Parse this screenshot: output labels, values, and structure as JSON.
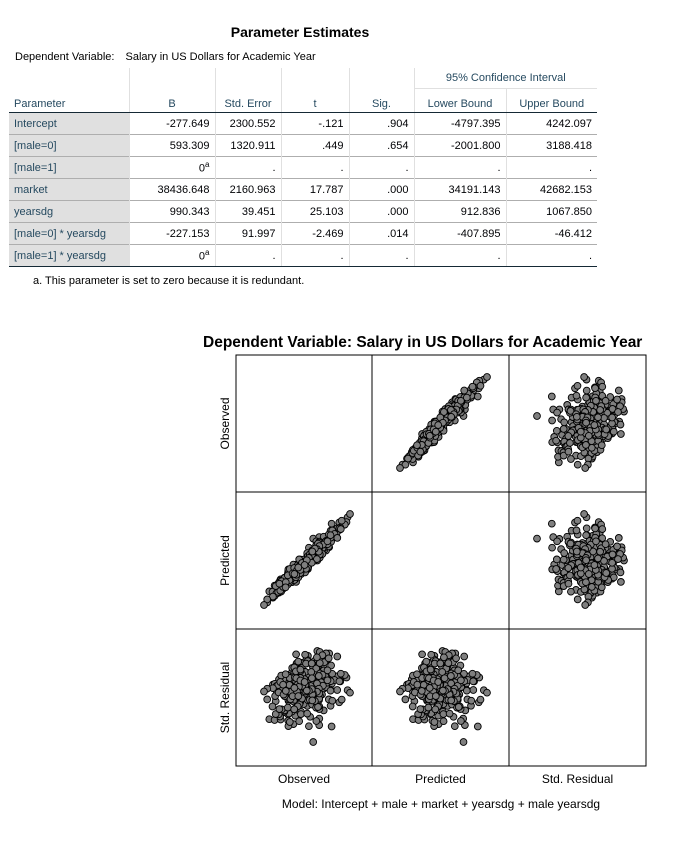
{
  "table": {
    "title": "Parameter Estimates",
    "dependent_label": "Dependent Variable:",
    "dependent_value": "Salary in US Dollars for Academic Year",
    "ci_header": "95% Confidence Interval",
    "columns": [
      "Parameter",
      "B",
      "Std. Error",
      "t",
      "Sig.",
      "Lower Bound",
      "Upper Bound"
    ],
    "rows": [
      {
        "param": "Intercept",
        "b": "-277.649",
        "se": "2300.552",
        "t": "-.121",
        "sig": ".904",
        "lo": "-4797.395",
        "hi": "4242.097"
      },
      {
        "param": "[male=0]",
        "b": "593.309",
        "se": "1320.911",
        "t": ".449",
        "sig": ".654",
        "lo": "-2001.800",
        "hi": "3188.418"
      },
      {
        "param": "[male=1]",
        "b": "0",
        "b_sup": "a",
        "se": ".",
        "t": ".",
        "sig": ".",
        "lo": ".",
        "hi": "."
      },
      {
        "param": "market",
        "b": "38436.648",
        "se": "2160.963",
        "t": "17.787",
        "sig": ".000",
        "lo": "34191.143",
        "hi": "42682.153"
      },
      {
        "param": "yearsdg",
        "b": "990.343",
        "se": "39.451",
        "t": "25.103",
        "sig": ".000",
        "lo": "912.836",
        "hi": "1067.850"
      },
      {
        "param": "[male=0] * yearsdg",
        "b": "-227.153",
        "se": "91.997",
        "t": "-2.469",
        "sig": ".014",
        "lo": "-407.895",
        "hi": "-46.412"
      },
      {
        "param": "[male=1] * yearsdg",
        "b": "0",
        "b_sup": "a",
        "se": ".",
        "t": ".",
        "sig": ".",
        "lo": ".",
        "hi": "."
      }
    ],
    "footnote": "a. This parameter is set to zero because it is redundant."
  },
  "chart_data": {
    "type": "scatter",
    "subtype": "scatterplot-matrix",
    "title": "Dependent Variable: Salary in US Dollars for Academic Year",
    "variables": [
      "Observed",
      "Predicted",
      "Std. Residual"
    ],
    "note": "Model: Intercept + male + market + yearsdg + male yearsdg",
    "panels": [
      {
        "row": "Observed",
        "col": "Predicted",
        "pattern": "strong positive linear cloud"
      },
      {
        "row": "Observed",
        "col": "Std. Residual",
        "pattern": "positive linear cloud"
      },
      {
        "row": "Predicted",
        "col": "Observed",
        "pattern": "strong positive linear cloud"
      },
      {
        "row": "Predicted",
        "col": "Std. Residual",
        "pattern": "no relationship"
      },
      {
        "row": "Std. Residual",
        "col": "Observed",
        "pattern": "positive linear cloud"
      },
      {
        "row": "Std. Residual",
        "col": "Predicted",
        "pattern": "no relationship"
      }
    ],
    "diagonal_empty": true,
    "marker_fill": "#7f7f7f",
    "marker_edge": "#000000",
    "grid": false
  }
}
